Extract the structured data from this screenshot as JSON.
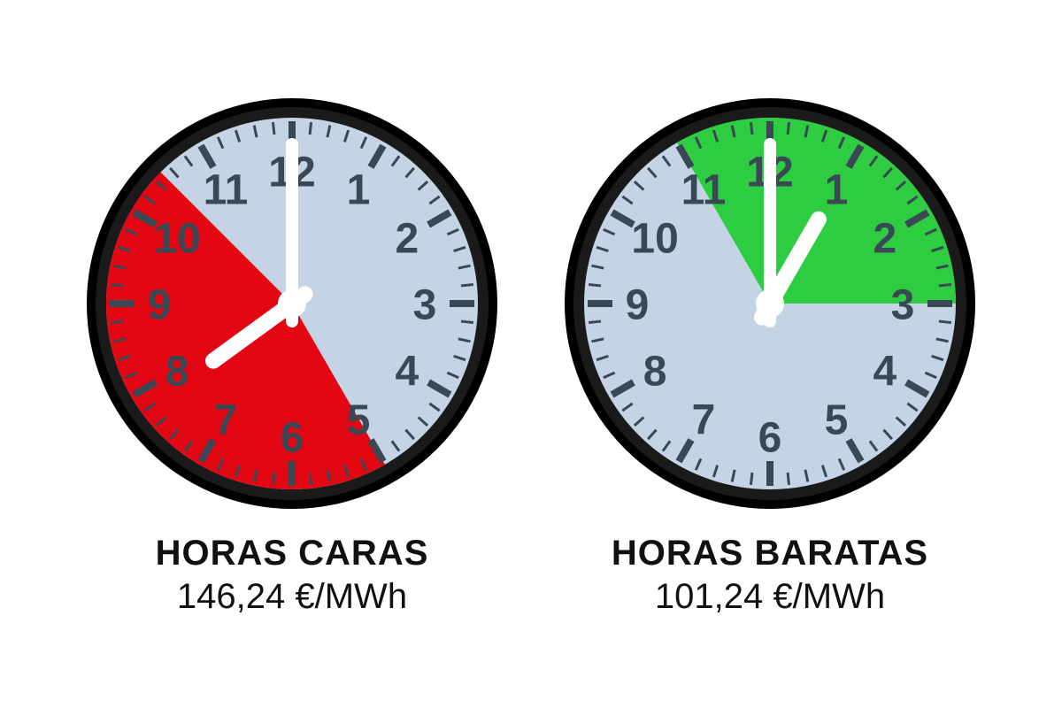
{
  "clocks": [
    {
      "title": "HORAS CARAS",
      "price": "146,24 €/MWh",
      "sector_start_hour": 5,
      "sector_end_hour": 10.5,
      "sector_color": "#e30613",
      "face_color": "#c4d4e4",
      "hour_hand": 7.8,
      "minute_hand": 12
    },
    {
      "title": "HORAS BARATAS",
      "price": "101,24 €/MWh",
      "sector_start_hour": 11,
      "sector_end_hour": 3,
      "sector_color": "#2ecc40",
      "face_color": "#c4d4e4",
      "hour_hand": 1,
      "minute_hand": 12
    }
  ],
  "style": {
    "rim_outer": "#000000",
    "rim_inner": "#1a1a1a",
    "tick_color": "#3a4754",
    "hand_color": "#ffffff",
    "number_fontsize": 48,
    "title_fontsize": 40,
    "price_fontsize": 40,
    "clock_diameter": 480
  }
}
